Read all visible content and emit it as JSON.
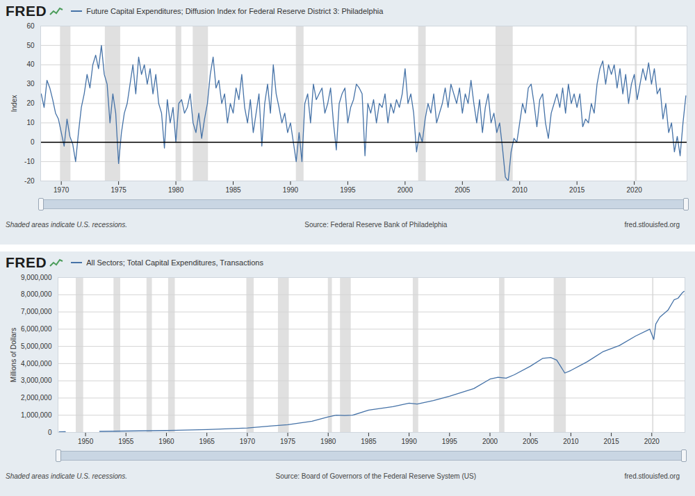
{
  "chart_data": [
    {
      "type": "line",
      "logo": "FRED",
      "ylabel": "Index",
      "caption": "Shaded areas indicate U.S. recessions.",
      "source": "Source: Federal Reserve Bank of Philadelphia",
      "website": "fred.stlouisfed.org",
      "xlim": [
        1968.2,
        2024.6
      ],
      "xticks": [
        1970,
        1975,
        1980,
        1985,
        1990,
        1995,
        2000,
        2005,
        2010,
        2015,
        2020
      ],
      "ylim": [
        -20,
        60
      ],
      "yticks": [
        -20,
        -10,
        0,
        10,
        20,
        30,
        40,
        50,
        60
      ],
      "grid": true,
      "recessions": [
        [
          1969.92,
          1970.83
        ],
        [
          1973.83,
          1975.17
        ],
        [
          1980,
          1980.5
        ],
        [
          1981.5,
          1982.83
        ],
        [
          1990.5,
          1991.17
        ],
        [
          2001.17,
          2001.83
        ],
        [
          2007.92,
          2009.42
        ],
        [
          2020.08,
          2020.25
        ]
      ],
      "x": [
        1968.25,
        1968.5,
        1968.75,
        1969,
        1969.25,
        1969.5,
        1969.75,
        1970,
        1970.25,
        1970.5,
        1970.75,
        1971,
        1971.25,
        1971.5,
        1971.75,
        1972,
        1972.25,
        1972.5,
        1972.75,
        1973,
        1973.25,
        1973.5,
        1973.75,
        1974,
        1974.25,
        1974.5,
        1974.75,
        1975,
        1975.25,
        1975.5,
        1975.75,
        1976,
        1976.25,
        1976.5,
        1976.75,
        1977,
        1977.25,
        1977.5,
        1977.75,
        1978,
        1978.25,
        1978.5,
        1978.75,
        1979,
        1979.25,
        1979.5,
        1979.75,
        1980,
        1980.25,
        1980.5,
        1980.75,
        1981,
        1981.25,
        1981.5,
        1981.75,
        1982,
        1982.25,
        1982.5,
        1982.75,
        1983,
        1983.25,
        1983.5,
        1983.75,
        1984,
        1984.25,
        1984.5,
        1984.75,
        1985,
        1985.25,
        1985.5,
        1985.75,
        1986,
        1986.25,
        1986.5,
        1986.75,
        1987,
        1987.25,
        1987.5,
        1987.75,
        1988,
        1988.25,
        1988.5,
        1988.75,
        1989,
        1989.25,
        1989.5,
        1989.75,
        1990,
        1990.25,
        1990.5,
        1990.75,
        1991,
        1991.25,
        1991.5,
        1991.75,
        1992,
        1992.25,
        1992.5,
        1992.75,
        1993,
        1993.25,
        1993.5,
        1993.75,
        1994,
        1994.25,
        1994.5,
        1994.75,
        1995,
        1995.25,
        1995.5,
        1995.75,
        1996,
        1996.25,
        1996.5,
        1996.75,
        1997,
        1997.25,
        1997.5,
        1997.75,
        1998,
        1998.25,
        1998.5,
        1998.75,
        1999,
        1999.25,
        1999.5,
        1999.75,
        2000,
        2000.25,
        2000.5,
        2000.75,
        2001,
        2001.25,
        2001.5,
        2001.75,
        2002,
        2002.25,
        2002.5,
        2002.75,
        2003,
        2003.25,
        2003.5,
        2003.75,
        2004,
        2004.25,
        2004.5,
        2004.75,
        2005,
        2005.25,
        2005.5,
        2005.75,
        2006,
        2006.25,
        2006.5,
        2006.75,
        2007,
        2007.25,
        2007.5,
        2007.75,
        2008,
        2008.25,
        2008.5,
        2008.75,
        2009,
        2009.25,
        2009.5,
        2009.75,
        2010,
        2010.25,
        2010.5,
        2010.75,
        2011,
        2011.25,
        2011.5,
        2011.75,
        2012,
        2012.25,
        2012.5,
        2012.75,
        2013,
        2013.25,
        2013.5,
        2013.75,
        2014,
        2014.25,
        2014.5,
        2014.75,
        2015,
        2015.25,
        2015.5,
        2015.75,
        2016,
        2016.25,
        2016.5,
        2016.75,
        2017,
        2017.25,
        2017.5,
        2017.75,
        2018,
        2018.25,
        2018.5,
        2018.75,
        2019,
        2019.25,
        2019.5,
        2019.75,
        2020,
        2020.25,
        2020.5,
        2020.75,
        2021,
        2021.25,
        2021.5,
        2021.75,
        2022,
        2022.25,
        2022.5,
        2022.75,
        2023,
        2023.25,
        2023.5,
        2023.75,
        2024,
        2024.25,
        2024.5
      ],
      "series": [
        {
          "name": "Future Capital Expenditures; Diffusion Index for Federal Reserve District 3: Philadelphia",
          "color": "#4572a7",
          "values": [
            25,
            18,
            32,
            28,
            22,
            15,
            12,
            5,
            -2,
            12,
            3,
            -1,
            -10,
            5,
            18,
            25,
            35,
            28,
            40,
            45,
            38,
            50,
            35,
            30,
            10,
            25,
            15,
            -11,
            5,
            15,
            20,
            30,
            40,
            25,
            44,
            35,
            40,
            30,
            38,
            25,
            35,
            20,
            15,
            -3,
            22,
            10,
            18,
            0,
            20,
            22,
            15,
            18,
            25,
            10,
            5,
            15,
            2,
            12,
            20,
            35,
            44,
            28,
            32,
            20,
            25,
            10,
            20,
            15,
            28,
            22,
            35,
            18,
            10,
            22,
            5,
            15,
            25,
            -2,
            20,
            30,
            15,
            40,
            25,
            18,
            10,
            15,
            5,
            10,
            0,
            -10,
            5,
            -10,
            20,
            25,
            10,
            30,
            22,
            25,
            28,
            15,
            20,
            28,
            10,
            -4,
            20,
            25,
            28,
            10,
            18,
            22,
            30,
            28,
            25,
            -7,
            20,
            15,
            22,
            10,
            20,
            18,
            25,
            10,
            20,
            15,
            22,
            18,
            25,
            38,
            20,
            25,
            15,
            -5,
            5,
            0,
            12,
            20,
            15,
            25,
            10,
            15,
            20,
            28,
            18,
            30,
            25,
            20,
            28,
            15,
            25,
            20,
            32,
            20,
            10,
            22,
            5,
            18,
            25,
            10,
            15,
            5,
            10,
            -3,
            -18,
            -20,
            -5,
            2,
            0,
            10,
            20,
            15,
            28,
            30,
            20,
            8,
            22,
            25,
            10,
            2,
            15,
            20,
            25,
            18,
            28,
            15,
            30,
            20,
            25,
            18,
            25,
            8,
            12,
            10,
            20,
            15,
            30,
            38,
            42,
            30,
            40,
            35,
            40,
            28,
            38,
            25,
            35,
            20,
            30,
            35,
            22,
            30,
            38,
            32,
            41,
            30,
            38,
            25,
            28,
            12,
            20,
            5,
            10,
            -5,
            3,
            -7,
            10,
            24
          ]
        }
      ]
    },
    {
      "type": "line",
      "logo": "FRED",
      "ylabel": "Millions of Dollars",
      "caption": "Shaded areas indicate U.S. recessions.",
      "source": "Source: Board of Governors of the Federal Reserve System (US)",
      "website": "fred.stlouisfed.org",
      "xlim": [
        1946.6,
        2024.1
      ],
      "xticks": [
        1950,
        1955,
        1960,
        1965,
        1970,
        1975,
        1980,
        1985,
        1990,
        1995,
        2000,
        2005,
        2010,
        2015,
        2020
      ],
      "ylim": [
        0,
        9000000
      ],
      "yticks": [
        0,
        {
          "value": 1000000,
          "label": "1,000,000"
        },
        {
          "value": 2000000,
          "label": "2,000,000"
        },
        {
          "value": 3000000,
          "label": "3,000,000"
        },
        {
          "value": 4000000,
          "label": "4,000,000"
        },
        {
          "value": 5000000,
          "label": "5,000,000"
        },
        {
          "value": 6000000,
          "label": "6,000,000"
        },
        {
          "value": 7000000,
          "label": "7,000,000"
        },
        {
          "value": 8000000,
          "label": "8,000,000"
        },
        {
          "value": 9000000,
          "label": "9,000,000"
        }
      ],
      "grid": true,
      "recessions": [
        [
          1948.83,
          1949.75
        ],
        [
          1953.5,
          1954.33
        ],
        [
          1957.58,
          1958.25
        ],
        [
          1960.25,
          1961.08
        ],
        [
          1969.92,
          1970.83
        ],
        [
          1973.83,
          1975.17
        ],
        [
          1980,
          1980.5
        ],
        [
          1981.5,
          1982.83
        ],
        [
          1990.5,
          1991.17
        ],
        [
          2001.17,
          2001.83
        ],
        [
          2007.92,
          2009.42
        ],
        [
          2020.08,
          2020.25
        ]
      ],
      "x": [
        1946.75,
        1947.5,
        1948.25,
        1951.75,
        1955,
        1960,
        1965,
        1970,
        1973,
        1975,
        1978,
        1980,
        1981,
        1982,
        1983,
        1985,
        1988,
        1990,
        1991,
        1993,
        1995,
        1998,
        2000,
        2001,
        2002,
        2003,
        2005,
        2006.5,
        2007.5,
        2008.25,
        2009.25,
        2010,
        2012,
        2014,
        2016,
        2018,
        2019.75,
        2020.25,
        2020.5,
        2021,
        2022,
        2022.75,
        2023.25,
        2023.75,
        2024
      ],
      "series": [
        {
          "name": "All Sectors; Total Capital Expenditures, Transactions",
          "color": "#4572a7",
          "values": [
            35000,
            40000,
            null,
            60000,
            80000,
            110000,
            170000,
            260000,
            380000,
            450000,
            650000,
            900000,
            1000000,
            980000,
            1000000,
            1300000,
            1500000,
            1700000,
            1650000,
            1850000,
            2100000,
            2550000,
            3100000,
            3200000,
            3150000,
            3350000,
            3850000,
            4300000,
            4350000,
            4200000,
            3450000,
            3600000,
            4100000,
            4700000,
            5050000,
            5600000,
            6000000,
            5400000,
            6300000,
            6700000,
            7100000,
            7700000,
            7800000,
            8100000,
            8200000
          ]
        }
      ]
    }
  ]
}
